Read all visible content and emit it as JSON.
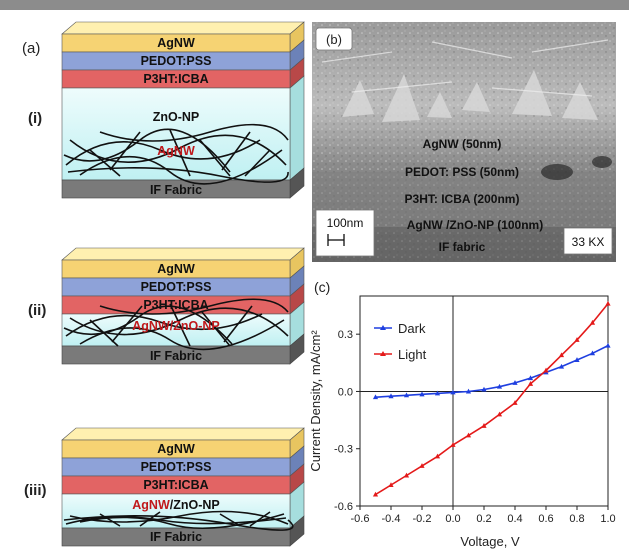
{
  "panel_a": {
    "label": "(a)",
    "devices": [
      {
        "roman": "(i)",
        "layers": [
          "AgNW",
          "PEDOT:PSS",
          "P3HT:ICBA",
          "ZnO-NP",
          "IF Fabric"
        ],
        "nanowire_label": "AgNW"
      },
      {
        "roman": "(ii)",
        "layers": [
          "AgNW",
          "PEDOT:PSS",
          "P3HT:ICBA",
          "IF Fabric"
        ],
        "nanowire_label": "AgNW/ZnO-NP"
      },
      {
        "roman": "(iii)",
        "layers": [
          "AgNW",
          "PEDOT:PSS",
          "P3HT:ICBA",
          "IF Fabric"
        ],
        "nanowire_label_red": "AgNW",
        "nanowire_label_black": "/ZnO-NP"
      }
    ]
  },
  "panel_b": {
    "label": "(b)",
    "annotations": [
      "AgNW (50nm)",
      "PEDOT: PSS (50nm)",
      "P3HT: ICBA (200nm)",
      "AgNW /ZnO-NP (100nm)",
      "IF fabric"
    ],
    "scale_bar": "100nm",
    "magnification": "33 KX"
  },
  "panel_c": {
    "label": "(c)"
  },
  "chart_data": {
    "type": "line",
    "xlabel": "Voltage, V",
    "ylabel": "Current Density, mA/cm²",
    "xlim": [
      -0.6,
      1.0
    ],
    "ylim": [
      -0.6,
      0.5
    ],
    "x_ticks": [
      "-0.6",
      "-0.4",
      "-0.2",
      "0.0",
      "0.2",
      "0.4",
      "0.6",
      "0.8",
      "1.0"
    ],
    "y_ticks": [
      "-0.6",
      "-0.3",
      "0.0",
      "0.3"
    ],
    "legend_position": "top-left",
    "series": [
      {
        "name": "Dark",
        "color": "#1f3fe0",
        "marker": "triangle",
        "x": [
          -0.5,
          -0.4,
          -0.3,
          -0.2,
          -0.1,
          0.0,
          0.1,
          0.2,
          0.3,
          0.4,
          0.5,
          0.6,
          0.7,
          0.8,
          0.9,
          1.0
        ],
        "y": [
          -0.03,
          -0.025,
          -0.02,
          -0.015,
          -0.01,
          -0.005,
          0.0,
          0.01,
          0.025,
          0.045,
          0.07,
          0.1,
          0.13,
          0.165,
          0.2,
          0.24
        ]
      },
      {
        "name": "Light",
        "color": "#e41a1a",
        "marker": "triangle",
        "x": [
          -0.5,
          -0.4,
          -0.3,
          -0.2,
          -0.1,
          0.0,
          0.1,
          0.2,
          0.3,
          0.4,
          0.5,
          0.6,
          0.7,
          0.8,
          0.9,
          1.0
        ],
        "y": [
          -0.54,
          -0.49,
          -0.44,
          -0.39,
          -0.34,
          -0.28,
          -0.23,
          -0.18,
          -0.12,
          -0.06,
          0.04,
          0.11,
          0.19,
          0.27,
          0.36,
          0.46
        ]
      }
    ]
  }
}
